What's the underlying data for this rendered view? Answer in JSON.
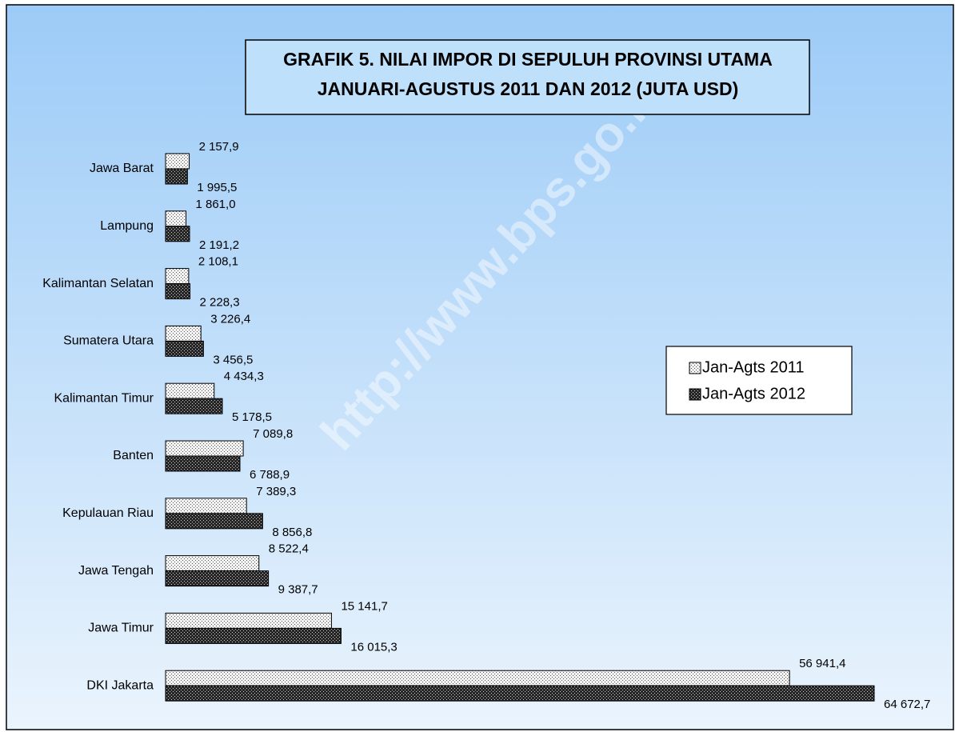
{
  "chart_data": {
    "type": "bar",
    "orientation": "horizontal",
    "title": "GRAFIK 5. NILAI IMPOR DI SEPULUH PROVINSI UTAMA",
    "subtitle": "JANUARI-AGUSTUS 2011 DAN 2012 (JUTA USD)",
    "watermark": "http://www.bps.go.id",
    "categories": [
      "Jawa Barat",
      "Lampung",
      "Kalimantan Selatan",
      "Sumatera Utara",
      "Kalimantan Timur",
      "Banten",
      "Kepulauan Riau",
      "Jawa Tengah",
      "Jawa Timur",
      "DKI Jakarta"
    ],
    "series": [
      {
        "name": "Jan-Agts 2011",
        "color": "#f2f2f2",
        "values": [
          2157.9,
          1861.0,
          2108.1,
          3226.4,
          4434.3,
          7089.8,
          7389.3,
          8522.4,
          15141.7,
          56941.4
        ],
        "value_labels": [
          "2 157,9",
          "1 861,0",
          "2 108,1",
          "3 226,4",
          "4 434,3",
          "7 089,8",
          "7 389,3",
          "8 522,4",
          "15 141,7",
          "56 941,4"
        ]
      },
      {
        "name": "Jan-Agts 2012",
        "color": "#262626",
        "values": [
          1995.5,
          2191.2,
          2228.3,
          3456.5,
          5178.5,
          6788.9,
          8856.8,
          9387.7,
          16015.3,
          64672.7
        ],
        "value_labels": [
          "1 995,5",
          "2 191,2",
          "2 228,3",
          "3 456,5",
          "5 178,5",
          "6 788,9",
          "8 856,8",
          "9 387,7",
          "16 015,3",
          "64 672,7"
        ]
      }
    ],
    "legend": "right"
  }
}
